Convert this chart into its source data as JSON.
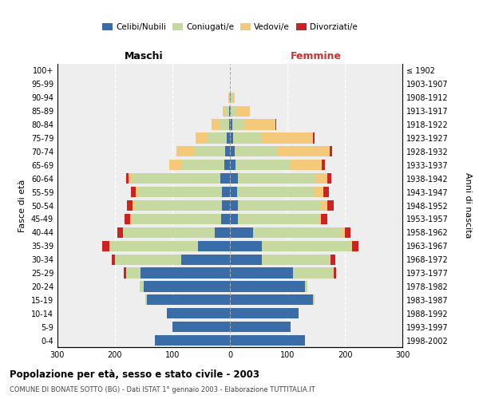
{
  "age_groups": [
    "0-4",
    "5-9",
    "10-14",
    "15-19",
    "20-24",
    "25-29",
    "30-34",
    "35-39",
    "40-44",
    "45-49",
    "50-54",
    "55-59",
    "60-64",
    "65-69",
    "70-74",
    "75-79",
    "80-84",
    "85-89",
    "90-94",
    "95-99",
    "100+"
  ],
  "birth_years": [
    "1998-2002",
    "1993-1997",
    "1988-1992",
    "1983-1987",
    "1978-1982",
    "1973-1977",
    "1968-1972",
    "1963-1967",
    "1958-1962",
    "1953-1957",
    "1948-1952",
    "1943-1947",
    "1938-1942",
    "1933-1937",
    "1928-1932",
    "1923-1927",
    "1918-1922",
    "1913-1917",
    "1908-1912",
    "1903-1907",
    "≤ 1902"
  ],
  "colors": {
    "celibi": "#3a6ca8",
    "coniugati": "#c5d9a0",
    "vedovi": "#f5c97a",
    "divorziati": "#cc2222"
  },
  "maschi": {
    "celibi": [
      130,
      100,
      110,
      145,
      150,
      155,
      85,
      55,
      26,
      15,
      14,
      14,
      16,
      10,
      8,
      5,
      2,
      1,
      0,
      0,
      0
    ],
    "coniugati": [
      0,
      0,
      0,
      2,
      5,
      25,
      115,
      155,
      160,
      155,
      150,
      145,
      155,
      75,
      55,
      35,
      15,
      7,
      2,
      0,
      0
    ],
    "vedovi": [
      0,
      0,
      0,
      0,
      2,
      0,
      0,
      0,
      0,
      3,
      5,
      5,
      5,
      20,
      30,
      20,
      15,
      5,
      1,
      0,
      0
    ],
    "divorziati": [
      0,
      0,
      0,
      0,
      0,
      5,
      5,
      12,
      10,
      10,
      10,
      8,
      5,
      0,
      0,
      0,
      0,
      0,
      0,
      0,
      0
    ]
  },
  "femmine": {
    "celibi": [
      130,
      105,
      120,
      145,
      130,
      110,
      55,
      55,
      40,
      14,
      14,
      12,
      14,
      10,
      8,
      5,
      4,
      2,
      2,
      0,
      0
    ],
    "coniugati": [
      0,
      0,
      0,
      2,
      5,
      70,
      120,
      155,
      155,
      140,
      145,
      135,
      135,
      95,
      75,
      50,
      20,
      8,
      2,
      0,
      0
    ],
    "vedovi": [
      0,
      0,
      0,
      0,
      0,
      0,
      0,
      3,
      5,
      5,
      10,
      15,
      20,
      55,
      90,
      90,
      55,
      25,
      4,
      0,
      0
    ],
    "divorziati": [
      0,
      0,
      0,
      0,
      0,
      5,
      8,
      10,
      10,
      10,
      12,
      10,
      8,
      5,
      5,
      2,
      2,
      0,
      0,
      0,
      0
    ]
  },
  "title": "Popolazione per età, sesso e stato civile - 2003",
  "subtitle": "COMUNE DI BONATE SOTTO (BG) - Dati ISTAT 1° gennaio 2003 - Elaborazione TUTTITALIA.IT",
  "maschi_label": "Maschi",
  "femmine_label": "Femmine",
  "ylabel_left": "Fasce di età",
  "ylabel_right": "Anni di nascita",
  "legend_labels": [
    "Celibi/Nubili",
    "Coniugati/e",
    "Vedovi/e",
    "Divorziati/e"
  ],
  "xlim": 300,
  "bg_color": "#eeeeee",
  "white_color": "#ffffff"
}
